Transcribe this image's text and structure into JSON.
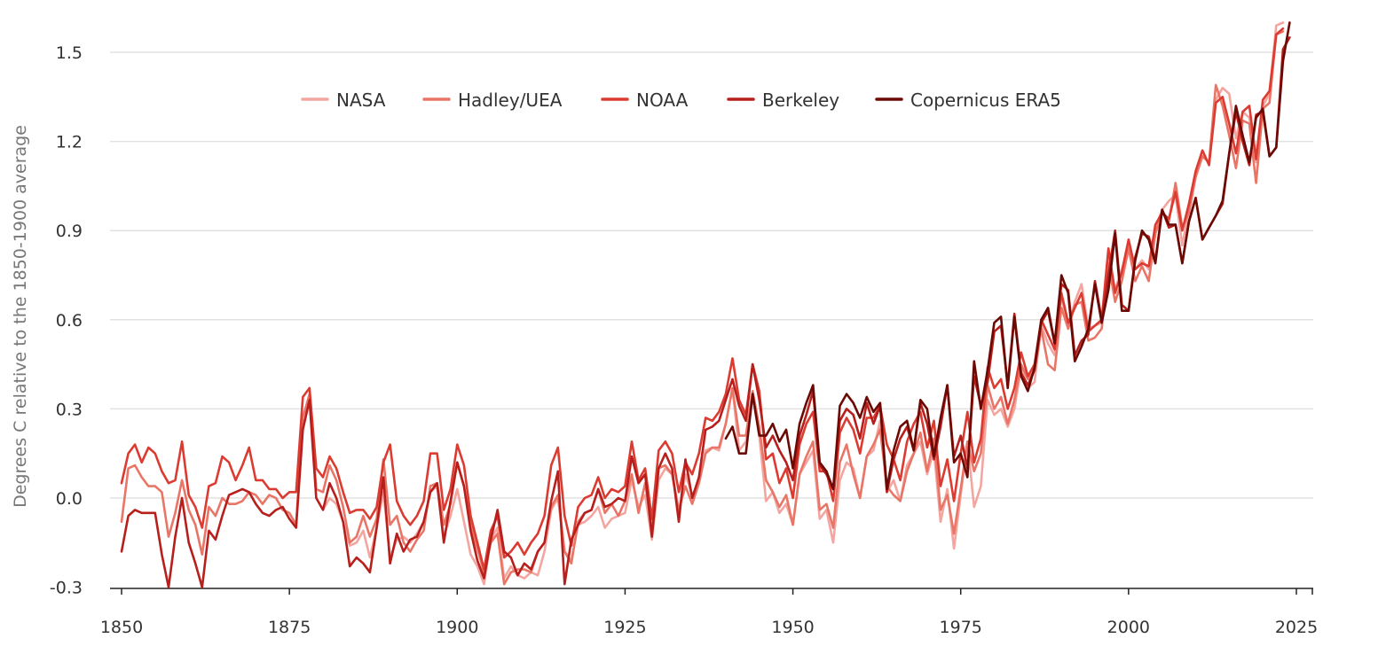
{
  "chart_data": {
    "type": "line",
    "title": "",
    "xlabel": "",
    "ylabel": "Degrees C relative to the 1850-1900 average",
    "xlim": [
      1849.5,
      2025.5
    ],
    "ylim": [
      -0.3,
      1.6
    ],
    "x_ticks": [
      1850,
      1875,
      1900,
      1925,
      1950,
      1975,
      2000,
      2025
    ],
    "y_ticks": [
      -0.3,
      0.0,
      0.3,
      0.6,
      0.9,
      1.2,
      1.5
    ],
    "y_tick_labels": [
      "-0.3",
      "0.0",
      "0.3",
      "0.6",
      "0.9",
      "1.2",
      "1.5"
    ],
    "grid": "horizontal",
    "legend": "top-left",
    "series": [
      {
        "name": "NASA",
        "color": "#f4a5a0",
        "start": 1880,
        "values": [
          -0.04,
          0.0,
          -0.02,
          -0.08,
          -0.16,
          -0.15,
          -0.11,
          -0.2,
          -0.1,
          0.02,
          -0.2,
          -0.14,
          -0.13,
          -0.15,
          -0.12,
          -0.08,
          0.02,
          0.04,
          -0.13,
          -0.06,
          0.03,
          -0.08,
          -0.19,
          -0.23,
          -0.29,
          -0.14,
          -0.1,
          -0.27,
          -0.23,
          -0.26,
          -0.27,
          -0.25,
          -0.26,
          -0.18,
          -0.04,
          0.0,
          -0.18,
          -0.21,
          -0.09,
          -0.08,
          -0.06,
          -0.03,
          -0.1,
          -0.07,
          -0.06,
          -0.05,
          0.06,
          -0.03,
          0.01,
          -0.14,
          0.06,
          0.1,
          0.08,
          -0.05,
          0.08,
          0.01,
          0.05,
          0.16,
          0.17,
          0.16,
          0.25,
          0.37,
          0.16,
          0.19,
          0.34,
          0.21,
          -0.01,
          0.02,
          -0.05,
          -0.02,
          -0.09,
          0.08,
          0.12,
          0.16,
          -0.07,
          -0.04,
          -0.15,
          0.06,
          0.12,
          0.1,
          0.0,
          0.14,
          0.16,
          0.26,
          0.02,
          0.06,
          -0.01,
          0.11,
          0.15,
          0.19,
          0.08,
          0.16,
          -0.08,
          0.03,
          -0.17,
          0.01,
          0.19,
          -0.03,
          0.04,
          0.33,
          0.28,
          0.3,
          0.24,
          0.3,
          0.44,
          0.37,
          0.39,
          0.58,
          0.52,
          0.48,
          0.68,
          0.57,
          0.66,
          0.72,
          0.57,
          0.58,
          0.59,
          0.82,
          0.7,
          0.77,
          0.85,
          0.77,
          0.8,
          0.77,
          0.91,
          0.97,
          1.0,
          1.02,
          0.85,
          0.97,
          1.09,
          1.15,
          1.13,
          1.34,
          1.38,
          1.36,
          1.21,
          1.3,
          1.28,
          1.13,
          1.32,
          1.36,
          1.59,
          1.6
        ]
      },
      {
        "name": "Hadley/UEA",
        "color": "#e97567",
        "start": 1850,
        "values": [
          -0.08,
          0.1,
          0.11,
          0.07,
          0.04,
          0.04,
          0.02,
          -0.13,
          -0.05,
          0.06,
          -0.04,
          -0.09,
          -0.19,
          -0.03,
          -0.06,
          0.0,
          -0.02,
          -0.02,
          -0.01,
          0.02,
          0.01,
          -0.02,
          0.01,
          0.0,
          -0.04,
          -0.05,
          -0.09,
          0.27,
          0.35,
          0.03,
          0.02,
          0.11,
          0.06,
          -0.03,
          -0.15,
          -0.13,
          -0.06,
          -0.13,
          -0.07,
          0.13,
          -0.09,
          -0.06,
          -0.15,
          -0.18,
          -0.14,
          -0.11,
          0.04,
          0.05,
          -0.09,
          -0.02,
          0.12,
          0.04,
          -0.09,
          -0.17,
          -0.25,
          -0.15,
          -0.12,
          -0.29,
          -0.25,
          -0.24,
          -0.24,
          -0.25,
          -0.18,
          -0.15,
          -0.03,
          0.01,
          -0.18,
          -0.22,
          -0.08,
          -0.05,
          -0.04,
          0.03,
          -0.05,
          -0.02,
          -0.06,
          -0.01,
          0.08,
          -0.05,
          0.05,
          -0.1,
          0.1,
          0.11,
          0.08,
          -0.04,
          0.04,
          -0.02,
          0.05,
          0.15,
          0.17,
          0.17,
          0.25,
          0.37,
          0.21,
          0.21,
          0.36,
          0.24,
          0.06,
          0.02,
          -0.03,
          0.01,
          -0.09,
          0.08,
          0.14,
          0.19,
          -0.04,
          -0.02,
          -0.1,
          0.12,
          0.18,
          0.08,
          0.0,
          0.14,
          0.18,
          0.23,
          0.04,
          0.01,
          -0.01,
          0.09,
          0.15,
          0.22,
          0.09,
          0.2,
          -0.04,
          0.01,
          -0.12,
          0.03,
          0.19,
          0.09,
          0.15,
          0.38,
          0.3,
          0.34,
          0.25,
          0.33,
          0.45,
          0.4,
          0.43,
          0.57,
          0.45,
          0.43,
          0.64,
          0.57,
          0.65,
          0.66,
          0.53,
          0.54,
          0.57,
          0.79,
          0.66,
          0.73,
          0.84,
          0.73,
          0.78,
          0.73,
          0.89,
          0.96,
          0.93,
          1.06,
          0.91,
          0.96,
          1.08,
          1.15,
          1.13,
          1.39,
          1.32,
          1.22,
          1.11,
          1.27,
          1.26,
          1.06,
          1.31,
          1.33,
          1.56,
          1.57
        ]
      },
      {
        "name": "NOAA",
        "color": "#db3b31",
        "start": 1850,
        "values": [
          0.05,
          0.15,
          0.18,
          0.12,
          0.17,
          0.15,
          0.09,
          0.05,
          0.06,
          0.19,
          0.01,
          -0.03,
          -0.1,
          0.04,
          0.05,
          0.14,
          0.12,
          0.06,
          0.11,
          0.17,
          0.06,
          0.06,
          0.03,
          0.03,
          0.0,
          0.02,
          0.02,
          0.34,
          0.37,
          0.1,
          0.07,
          0.14,
          0.1,
          0.02,
          -0.05,
          -0.04,
          -0.04,
          -0.07,
          -0.03,
          0.12,
          0.18,
          -0.01,
          -0.06,
          -0.09,
          -0.06,
          -0.01,
          0.15,
          0.15,
          -0.04,
          0.03,
          0.18,
          0.11,
          -0.06,
          -0.15,
          -0.24,
          -0.11,
          -0.06,
          -0.2,
          -0.18,
          -0.15,
          -0.19,
          -0.15,
          -0.12,
          -0.06,
          0.11,
          0.17,
          -0.06,
          -0.16,
          -0.03,
          0.0,
          0.01,
          0.07,
          0.0,
          0.03,
          0.02,
          0.04,
          0.19,
          0.06,
          0.1,
          -0.07,
          0.16,
          0.19,
          0.15,
          0.02,
          0.12,
          0.08,
          0.15,
          0.27,
          0.26,
          0.29,
          0.35,
          0.47,
          0.33,
          0.28,
          0.45,
          0.36,
          0.13,
          0.15,
          0.05,
          0.1,
          0.0,
          0.18,
          0.25,
          0.29,
          0.09,
          0.09,
          -0.01,
          0.22,
          0.27,
          0.23,
          0.15,
          0.27,
          0.27,
          0.31,
          0.18,
          0.13,
          0.06,
          0.19,
          0.25,
          0.29,
          0.17,
          0.26,
          0.04,
          0.13,
          -0.01,
          0.15,
          0.29,
          0.12,
          0.2,
          0.44,
          0.37,
          0.4,
          0.3,
          0.37,
          0.49,
          0.41,
          0.45,
          0.6,
          0.55,
          0.5,
          0.69,
          0.59,
          0.64,
          0.69,
          0.56,
          0.58,
          0.6,
          0.84,
          0.69,
          0.76,
          0.87,
          0.77,
          0.79,
          0.78,
          0.92,
          0.96,
          0.94,
          1.03,
          0.9,
          0.99,
          1.1,
          1.17,
          1.12,
          1.33,
          1.35,
          1.26,
          1.16,
          1.3,
          1.32,
          1.14,
          1.34,
          1.37,
          1.56,
          1.58
        ]
      },
      {
        "name": "Berkeley",
        "color": "#b71f1c",
        "start": 1850,
        "values": [
          -0.18,
          -0.06,
          -0.04,
          -0.05,
          -0.05,
          -0.05,
          -0.19,
          -0.3,
          -0.13,
          0.0,
          -0.15,
          -0.22,
          -0.3,
          -0.11,
          -0.14,
          -0.06,
          0.01,
          0.02,
          0.03,
          0.02,
          -0.02,
          -0.05,
          -0.06,
          -0.04,
          -0.03,
          -0.07,
          -0.1,
          0.23,
          0.33,
          0.0,
          -0.04,
          0.05,
          0.0,
          -0.08,
          -0.23,
          -0.2,
          -0.22,
          -0.25,
          -0.1,
          0.07,
          -0.22,
          -0.12,
          -0.18,
          -0.14,
          -0.13,
          -0.08,
          0.02,
          0.05,
          -0.15,
          -0.01,
          0.12,
          0.04,
          -0.11,
          -0.21,
          -0.27,
          -0.14,
          -0.04,
          -0.18,
          -0.2,
          -0.26,
          -0.22,
          -0.24,
          -0.18,
          -0.15,
          -0.01,
          0.09,
          -0.29,
          -0.14,
          -0.09,
          -0.05,
          -0.04,
          0.03,
          -0.03,
          -0.02,
          0.0,
          -0.01,
          0.14,
          0.05,
          0.08,
          -0.13,
          0.1,
          0.15,
          0.1,
          -0.08,
          0.13,
          0.0,
          0.07,
          0.23,
          0.24,
          0.26,
          0.33,
          0.4,
          0.31,
          0.26,
          0.45,
          0.33,
          0.17,
          0.21,
          0.16,
          0.12,
          0.06,
          0.21,
          0.28,
          0.36,
          0.11,
          0.08,
          0.03,
          0.26,
          0.3,
          0.28,
          0.2,
          0.32,
          0.25,
          0.31,
          0.02,
          0.13,
          0.2,
          0.24,
          0.16,
          0.32,
          0.25,
          0.13,
          0.24,
          0.38,
          0.14,
          0.21,
          0.1,
          0.41,
          0.31,
          0.39,
          0.56,
          0.58,
          0.38,
          0.62,
          0.42,
          0.38,
          0.43,
          0.59,
          0.63,
          0.52,
          0.72,
          0.7,
          0.48,
          0.53,
          0.55,
          0.73,
          0.6,
          0.75,
          0.9,
          0.65,
          0.63,
          0.81,
          0.89,
          0.88,
          0.8,
          0.97,
          0.91,
          0.92,
          0.79,
          0.93,
          1.01,
          0.87,
          0.91,
          0.95,
          0.99,
          1.16,
          1.3,
          1.2,
          1.12,
          1.29,
          1.3,
          1.15,
          1.18,
          1.51,
          1.55
        ]
      },
      {
        "name": "Copernicus ERA5",
        "color": "#6b0a05",
        "start": 1940,
        "values": [
          0.2,
          0.24,
          0.15,
          0.15,
          0.35,
          0.21,
          0.21,
          0.25,
          0.19,
          0.23,
          0.1,
          0.25,
          0.32,
          0.38,
          0.12,
          0.09,
          0.03,
          0.31,
          0.35,
          0.32,
          0.27,
          0.34,
          0.29,
          0.32,
          0.03,
          0.16,
          0.24,
          0.26,
          0.16,
          0.33,
          0.3,
          0.14,
          0.27,
          0.38,
          0.12,
          0.15,
          0.07,
          0.46,
          0.3,
          0.43,
          0.59,
          0.61,
          0.37,
          0.61,
          0.41,
          0.36,
          0.44,
          0.6,
          0.64,
          0.52,
          0.75,
          0.69,
          0.46,
          0.51,
          0.57,
          0.72,
          0.59,
          0.7,
          0.89,
          0.63,
          0.63,
          0.8,
          0.9,
          0.87,
          0.79,
          0.97,
          0.92,
          0.92,
          0.79,
          0.93,
          1.01,
          0.87,
          0.91,
          0.95,
          1.0,
          1.16,
          1.32,
          1.22,
          1.13,
          1.28,
          1.31,
          1.15,
          1.18,
          1.47,
          1.6
        ]
      }
    ]
  }
}
